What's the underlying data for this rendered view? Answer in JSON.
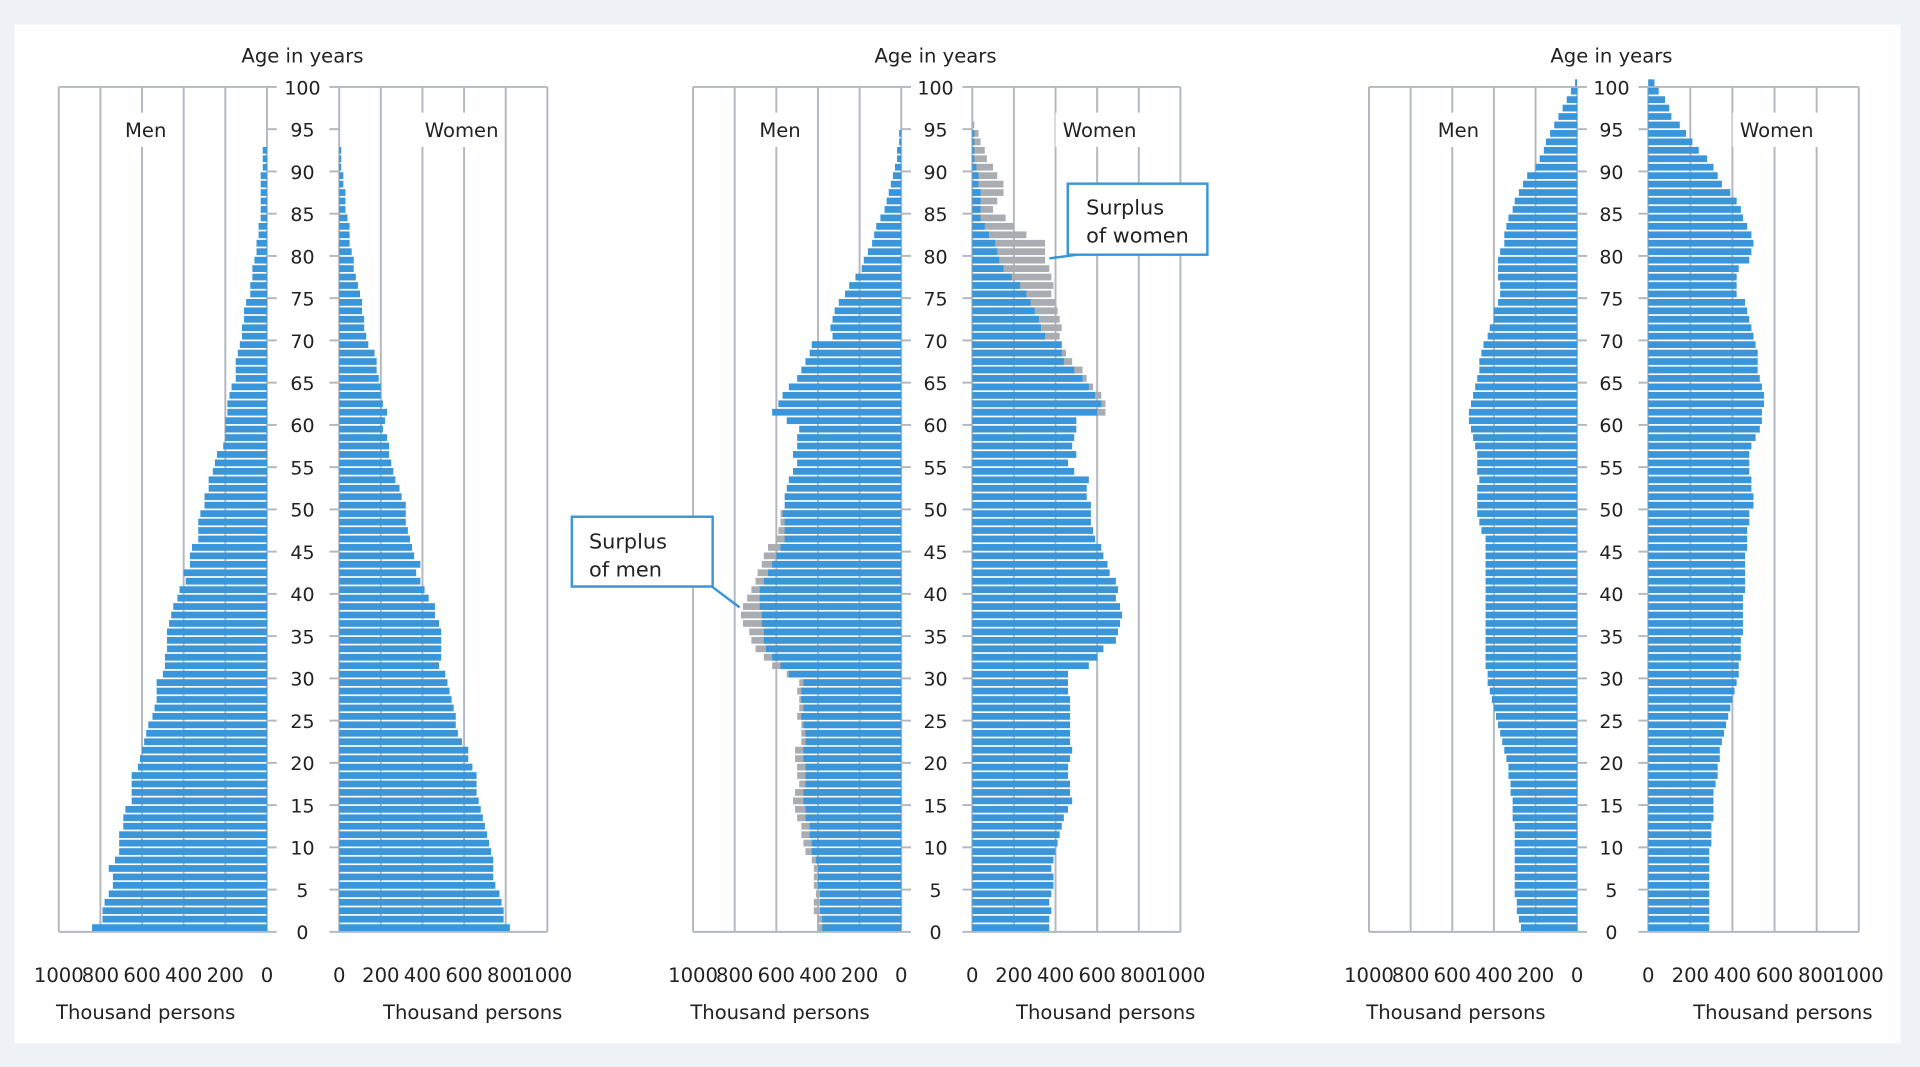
{
  "colors": {
    "bar": "#3a96d8",
    "surplus": "#a9adb2",
    "grid": "#b3b8be",
    "callout_border": "#3a96d8"
  },
  "chart_data": [
    {
      "type": "bar",
      "layout": "population-pyramid",
      "age_axis_title": "Age in years",
      "age_ticks": [
        0,
        5,
        10,
        15,
        20,
        25,
        30,
        35,
        40,
        45,
        50,
        55,
        60,
        65,
        70,
        75,
        80,
        85,
        90,
        95,
        100
      ],
      "men_label": "Men",
      "women_label": "Women",
      "x_ticks": [
        1000,
        800,
        600,
        400,
        200,
        0
      ],
      "x_tick_labels_men": [
        "1000",
        "800",
        "600",
        "400",
        "200",
        "0"
      ],
      "x_tick_labels_women": [
        "0",
        "200",
        "400",
        "600",
        "800",
        "1000"
      ],
      "xlabel_men": "Thousand persons",
      "xlabel_women": "Thousand persons",
      "xlim": [
        0,
        1000
      ],
      "ages": [
        0,
        1,
        2,
        3,
        4,
        5,
        6,
        7,
        8,
        9,
        10,
        11,
        12,
        13,
        14,
        15,
        16,
        17,
        18,
        19,
        20,
        21,
        22,
        23,
        24,
        25,
        26,
        27,
        28,
        29,
        30,
        31,
        32,
        33,
        34,
        35,
        36,
        37,
        38,
        39,
        40,
        41,
        42,
        43,
        44,
        45,
        46,
        47,
        48,
        49,
        50,
        51,
        52,
        53,
        54,
        55,
        56,
        57,
        58,
        59,
        60,
        61,
        62,
        63,
        64,
        65,
        66,
        67,
        68,
        69,
        70,
        71,
        72,
        73,
        74,
        75,
        76,
        77,
        78,
        79,
        80,
        81,
        82,
        83,
        84,
        85,
        86,
        87,
        88,
        89,
        90,
        91,
        92
      ],
      "men": [
        840,
        790,
        790,
        780,
        760,
        740,
        740,
        760,
        730,
        710,
        710,
        710,
        690,
        690,
        680,
        650,
        650,
        650,
        650,
        620,
        610,
        600,
        590,
        580,
        570,
        550,
        540,
        530,
        530,
        530,
        500,
        490,
        490,
        480,
        480,
        480,
        470,
        460,
        450,
        430,
        420,
        390,
        400,
        370,
        370,
        360,
        330,
        330,
        330,
        320,
        300,
        300,
        280,
        280,
        260,
        250,
        240,
        210,
        200,
        200,
        200,
        190,
        190,
        180,
        170,
        150,
        150,
        150,
        140,
        130,
        120,
        120,
        110,
        110,
        100,
        80,
        80,
        70,
        70,
        60,
        50,
        50,
        40,
        40,
        30,
        30,
        30,
        30,
        30,
        30,
        20,
        20,
        20
      ],
      "women": [
        820,
        790,
        790,
        780,
        770,
        750,
        740,
        740,
        740,
        730,
        720,
        710,
        700,
        690,
        680,
        670,
        660,
        660,
        660,
        640,
        620,
        620,
        590,
        570,
        560,
        560,
        550,
        540,
        530,
        520,
        510,
        480,
        490,
        490,
        490,
        490,
        480,
        460,
        460,
        430,
        410,
        390,
        370,
        390,
        360,
        350,
        340,
        330,
        320,
        320,
        320,
        300,
        290,
        270,
        260,
        250,
        240,
        240,
        230,
        210,
        220,
        230,
        210,
        200,
        200,
        190,
        180,
        180,
        170,
        140,
        130,
        120,
        120,
        110,
        110,
        100,
        90,
        80,
        70,
        70,
        60,
        50,
        50,
        50,
        40,
        30,
        30,
        30,
        20,
        20,
        10,
        10,
        10
      ]
    },
    {
      "type": "bar",
      "layout": "population-pyramid",
      "age_axis_title": "Age in years",
      "age_ticks": [
        0,
        5,
        10,
        15,
        20,
        25,
        30,
        35,
        40,
        45,
        50,
        55,
        60,
        65,
        70,
        75,
        80,
        85,
        90,
        95,
        100
      ],
      "men_label": "Men",
      "women_label": "Women",
      "x_ticks": [
        1000,
        800,
        600,
        400,
        200,
        0
      ],
      "x_tick_labels_men": [
        "1000",
        "800",
        "600",
        "400",
        "200",
        "0"
      ],
      "x_tick_labels_women": [
        "0",
        "200",
        "400",
        "600",
        "800",
        "1000"
      ],
      "xlabel_men": "Thousand persons",
      "xlabel_women": "Thousand persons",
      "xlim": [
        0,
        1000
      ],
      "ages": [
        0,
        1,
        2,
        3,
        4,
        5,
        6,
        7,
        8,
        9,
        10,
        11,
        12,
        13,
        14,
        15,
        16,
        17,
        18,
        19,
        20,
        21,
        22,
        23,
        24,
        25,
        26,
        27,
        28,
        29,
        30,
        31,
        32,
        33,
        34,
        35,
        36,
        37,
        38,
        39,
        40,
        41,
        42,
        43,
        44,
        45,
        46,
        47,
        48,
        49,
        50,
        51,
        52,
        53,
        54,
        55,
        56,
        57,
        58,
        59,
        60,
        61,
        62,
        63,
        64,
        65,
        66,
        67,
        68,
        69,
        70,
        71,
        72,
        73,
        74,
        75,
        76,
        77,
        78,
        79,
        80,
        81,
        82,
        83,
        84,
        85,
        86,
        87,
        88,
        89,
        90,
        91,
        92,
        93,
        94,
        95
      ],
      "men": [
        380,
        380,
        390,
        390,
        390,
        400,
        400,
        400,
        410,
        430,
        430,
        440,
        440,
        460,
        460,
        470,
        470,
        460,
        460,
        460,
        470,
        470,
        460,
        460,
        470,
        480,
        470,
        480,
        480,
        470,
        540,
        580,
        620,
        650,
        660,
        660,
        670,
        670,
        680,
        680,
        680,
        660,
        640,
        620,
        600,
        580,
        560,
        560,
        560,
        570,
        560,
        560,
        550,
        540,
        520,
        500,
        520,
        500,
        500,
        490,
        550,
        620,
        590,
        570,
        540,
        500,
        480,
        460,
        440,
        430,
        330,
        340,
        330,
        320,
        300,
        270,
        250,
        220,
        190,
        180,
        160,
        140,
        130,
        120,
        100,
        80,
        70,
        60,
        50,
        40,
        30,
        20,
        20,
        10,
        10,
        0
      ],
      "men_incl_surplus": [
        400,
        400,
        420,
        420,
        410,
        420,
        420,
        420,
        430,
        460,
        470,
        480,
        480,
        500,
        510,
        520,
        510,
        490,
        500,
        500,
        510,
        510,
        480,
        480,
        480,
        500,
        490,
        490,
        500,
        490,
        550,
        620,
        660,
        700,
        720,
        730,
        760,
        770,
        760,
        740,
        720,
        700,
        690,
        670,
        660,
        640,
        600,
        590,
        580,
        580,
        560,
        560,
        550,
        540,
        520,
        500,
        520,
        500,
        500,
        490,
        550,
        620,
        590,
        570,
        540,
        500,
        480,
        460,
        440,
        430,
        330,
        340,
        330,
        320,
        300,
        270,
        250,
        220,
        190,
        180,
        160,
        140,
        130,
        120,
        100,
        80,
        70,
        60,
        50,
        40,
        30,
        20,
        20,
        10,
        10,
        0
      ],
      "women": [
        370,
        370,
        380,
        370,
        380,
        390,
        390,
        380,
        390,
        400,
        410,
        420,
        430,
        440,
        460,
        480,
        470,
        470,
        460,
        460,
        470,
        480,
        470,
        470,
        470,
        470,
        470,
        470,
        460,
        460,
        460,
        560,
        600,
        630,
        690,
        700,
        710,
        720,
        710,
        690,
        700,
        690,
        660,
        650,
        630,
        620,
        590,
        580,
        570,
        570,
        570,
        550,
        550,
        560,
        490,
        460,
        500,
        480,
        490,
        500,
        500,
        600,
        620,
        590,
        560,
        530,
        490,
        440,
        430,
        430,
        350,
        330,
        320,
        300,
        280,
        260,
        230,
        190,
        150,
        130,
        120,
        110,
        80,
        60,
        40,
        40,
        40,
        40,
        30,
        30,
        20,
        10,
        10,
        10,
        10,
        0
      ],
      "women_incl_surplus": [
        370,
        370,
        380,
        370,
        380,
        390,
        390,
        380,
        390,
        400,
        410,
        420,
        430,
        440,
        460,
        480,
        470,
        470,
        460,
        460,
        470,
        480,
        470,
        470,
        470,
        470,
        470,
        470,
        460,
        460,
        460,
        560,
        600,
        630,
        690,
        700,
        710,
        720,
        710,
        690,
        700,
        690,
        660,
        650,
        630,
        620,
        590,
        580,
        570,
        570,
        570,
        550,
        550,
        560,
        490,
        460,
        500,
        480,
        490,
        500,
        500,
        640,
        640,
        620,
        580,
        550,
        530,
        480,
        450,
        430,
        420,
        430,
        420,
        410,
        400,
        380,
        390,
        380,
        370,
        350,
        350,
        350,
        260,
        200,
        160,
        100,
        120,
        150,
        150,
        120,
        100,
        70,
        60,
        40,
        30,
        10
      ],
      "annotations": [
        {
          "text": [
            "Surplus",
            "of women"
          ]
        },
        {
          "text": [
            "Surplus",
            "of men"
          ]
        }
      ]
    },
    {
      "type": "bar",
      "layout": "population-pyramid",
      "age_axis_title": "Age in years",
      "age_ticks": [
        0,
        5,
        10,
        15,
        20,
        25,
        30,
        35,
        40,
        45,
        50,
        55,
        60,
        65,
        70,
        75,
        80,
        85,
        90,
        95,
        100
      ],
      "men_label": "Men",
      "women_label": "Women",
      "x_ticks": [
        1000,
        800,
        600,
        400,
        200,
        0
      ],
      "x_tick_labels_men": [
        "1000",
        "800",
        "600",
        "400",
        "200",
        "0"
      ],
      "x_tick_labels_women": [
        "0",
        "200",
        "400",
        "600",
        "800",
        "1000"
      ],
      "xlabel_men": "Thousand persons",
      "xlabel_women": "Thousand persons",
      "xlim": [
        0,
        1000
      ],
      "ages": [
        0,
        1,
        2,
        3,
        4,
        5,
        6,
        7,
        8,
        9,
        10,
        11,
        12,
        13,
        14,
        15,
        16,
        17,
        18,
        19,
        20,
        21,
        22,
        23,
        24,
        25,
        26,
        27,
        28,
        29,
        30,
        31,
        32,
        33,
        34,
        35,
        36,
        37,
        38,
        39,
        40,
        41,
        42,
        43,
        44,
        45,
        46,
        47,
        48,
        49,
        50,
        51,
        52,
        53,
        54,
        55,
        56,
        57,
        58,
        59,
        60,
        61,
        62,
        63,
        64,
        65,
        66,
        67,
        68,
        69,
        70,
        71,
        72,
        73,
        74,
        75,
        76,
        77,
        78,
        79,
        80,
        81,
        82,
        83,
        84,
        85,
        86,
        87,
        88,
        89,
        90,
        91,
        92,
        93,
        94,
        95,
        96,
        97,
        98,
        99,
        100
      ],
      "men": [
        270,
        280,
        290,
        290,
        300,
        300,
        300,
        300,
        300,
        300,
        300,
        300,
        300,
        310,
        310,
        310,
        320,
        320,
        330,
        330,
        340,
        350,
        360,
        370,
        380,
        390,
        400,
        410,
        420,
        430,
        430,
        440,
        440,
        440,
        440,
        440,
        440,
        440,
        440,
        440,
        440,
        440,
        440,
        440,
        440,
        440,
        440,
        460,
        470,
        480,
        480,
        480,
        480,
        470,
        480,
        480,
        480,
        490,
        500,
        510,
        520,
        520,
        510,
        500,
        490,
        480,
        470,
        470,
        460,
        450,
        430,
        420,
        400,
        400,
        380,
        370,
        370,
        380,
        380,
        380,
        370,
        350,
        350,
        340,
        330,
        310,
        300,
        280,
        260,
        240,
        200,
        180,
        160,
        150,
        130,
        110,
        90,
        70,
        50,
        30,
        10
      ],
      "women": [
        290,
        290,
        290,
        290,
        290,
        290,
        290,
        290,
        290,
        290,
        300,
        300,
        300,
        310,
        310,
        310,
        310,
        320,
        330,
        330,
        340,
        340,
        350,
        360,
        370,
        380,
        390,
        400,
        410,
        420,
        430,
        430,
        440,
        440,
        440,
        450,
        450,
        450,
        450,
        450,
        460,
        460,
        460,
        460,
        460,
        470,
        470,
        470,
        480,
        480,
        500,
        500,
        490,
        490,
        480,
        480,
        480,
        490,
        510,
        530,
        540,
        540,
        550,
        550,
        540,
        530,
        520,
        520,
        520,
        510,
        500,
        490,
        480,
        470,
        460,
        420,
        420,
        420,
        430,
        480,
        490,
        500,
        490,
        470,
        450,
        440,
        420,
        390,
        350,
        330,
        310,
        280,
        240,
        210,
        180,
        150,
        110,
        100,
        80,
        50,
        30
      ]
    }
  ]
}
